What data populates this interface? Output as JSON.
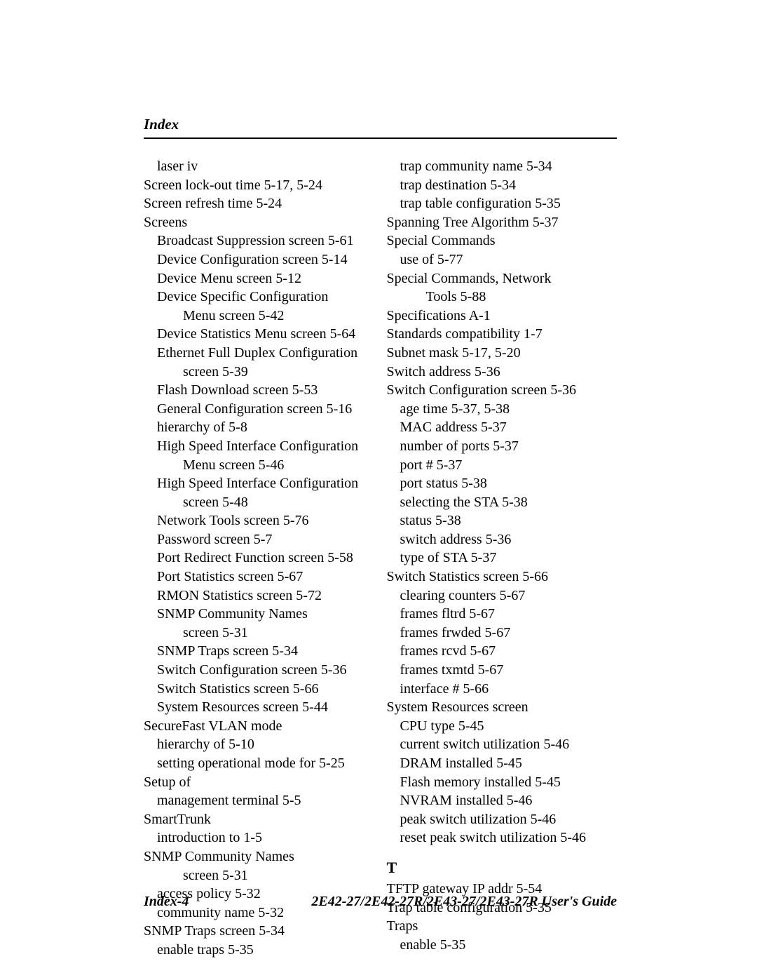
{
  "header": {
    "title": "Index"
  },
  "footer": {
    "left": "Index-4",
    "right": "2E42-27/2E42-27R/2E43-27/2E43-27R User's Guide"
  },
  "section_T": "T",
  "left_col": [
    {
      "text": "laser  iv",
      "indent": 1
    },
    {
      "text": "Screen lock-out time  5-17, 5-24",
      "indent": 0
    },
    {
      "text": "Screen refresh time  5-24",
      "indent": 0
    },
    {
      "text": "Screens",
      "indent": 0
    },
    {
      "text": "Broadcast Suppression screen  5-61",
      "indent": 1
    },
    {
      "text": "Device Configuration screen  5-14",
      "indent": 1
    },
    {
      "text": "Device Menu screen  5-12",
      "indent": 1
    },
    {
      "text": "Device Specific Configuration",
      "indent": 1
    },
    {
      "text": "Menu screen  5-42",
      "indent": 2
    },
    {
      "text": "Device Statistics Menu screen  5-64",
      "indent": 1
    },
    {
      "text": "Ethernet Full Duplex Configuration",
      "indent": 1
    },
    {
      "text": "screen  5-39",
      "indent": 2
    },
    {
      "text": "Flash Download screen  5-53",
      "indent": 1
    },
    {
      "text": "General Configuration screen  5-16",
      "indent": 1
    },
    {
      "text": "hierarchy of  5-8",
      "indent": 1
    },
    {
      "text": "High Speed Interface Configuration",
      "indent": 1
    },
    {
      "text": "Menu screen  5-46",
      "indent": 2
    },
    {
      "text": "High Speed Interface Configuration",
      "indent": 1
    },
    {
      "text": "screen  5-48",
      "indent": 2
    },
    {
      "text": "Network Tools screen  5-76",
      "indent": 1
    },
    {
      "text": "Password screen  5-7",
      "indent": 1
    },
    {
      "text": "Port Redirect Function screen  5-58",
      "indent": 1
    },
    {
      "text": "Port Statistics screen  5-67",
      "indent": 1
    },
    {
      "text": "RMON Statistics screen  5-72",
      "indent": 1
    },
    {
      "text": "SNMP Community Names",
      "indent": 1
    },
    {
      "text": "screen  5-31",
      "indent": 2
    },
    {
      "text": "SNMP Traps screen  5-34",
      "indent": 1
    },
    {
      "text": "Switch Configuration screen  5-36",
      "indent": 1
    },
    {
      "text": "Switch Statistics screen  5-66",
      "indent": 1
    },
    {
      "text": "System Resources screen  5-44",
      "indent": 1
    },
    {
      "text": "SecureFast VLAN mode",
      "indent": 0
    },
    {
      "text": "hierarchy of  5-10",
      "indent": 1
    },
    {
      "text": "setting operational mode for  5-25",
      "indent": 1
    },
    {
      "text": "Setup of",
      "indent": 0
    },
    {
      "text": "management terminal  5-5",
      "indent": 1
    },
    {
      "text": "SmartTrunk",
      "indent": 0
    },
    {
      "text": "introduction to  1-5",
      "indent": 1
    },
    {
      "text": "SNMP Community Names",
      "indent": 0
    },
    {
      "text": "screen  5-31",
      "indent": 2
    },
    {
      "text": "access policy  5-32",
      "indent": 1
    },
    {
      "text": "community name  5-32",
      "indent": 1
    },
    {
      "text": "SNMP Traps screen  5-34",
      "indent": 0
    },
    {
      "text": "enable traps  5-35",
      "indent": 1
    }
  ],
  "right_col_top": [
    {
      "text": "trap community name  5-34",
      "indent": 1
    },
    {
      "text": "trap destination  5-34",
      "indent": 1
    },
    {
      "text": "trap table configuration  5-35",
      "indent": 1
    },
    {
      "text": "Spanning Tree Algorithm  5-37",
      "indent": 0
    },
    {
      "text": "Special Commands",
      "indent": 0
    },
    {
      "text": "use of  5-77",
      "indent": 1
    },
    {
      "text": "Special Commands, Network",
      "indent": 0
    },
    {
      "text": "Tools  5-88",
      "indent": 2
    },
    {
      "text": "Specifications  A-1",
      "indent": 0
    },
    {
      "text": "Standards compatibility  1-7",
      "indent": 0
    },
    {
      "text": "Subnet mask  5-17, 5-20",
      "indent": 0
    },
    {
      "text": "Switch address  5-36",
      "indent": 0
    },
    {
      "text": "Switch Configuration screen  5-36",
      "indent": 0
    },
    {
      "text": "age time  5-37, 5-38",
      "indent": 1
    },
    {
      "text": "MAC address  5-37",
      "indent": 1
    },
    {
      "text": "number of ports  5-37",
      "indent": 1
    },
    {
      "text": "port #  5-37",
      "indent": 1
    },
    {
      "text": "port status  5-38",
      "indent": 1
    },
    {
      "text": "selecting the STA  5-38",
      "indent": 1
    },
    {
      "text": "status  5-38",
      "indent": 1
    },
    {
      "text": "switch address  5-36",
      "indent": 1
    },
    {
      "text": "type of STA  5-37",
      "indent": 1
    },
    {
      "text": "Switch Statistics screen  5-66",
      "indent": 0
    },
    {
      "text": "clearing counters  5-67",
      "indent": 1
    },
    {
      "text": "frames fltrd  5-67",
      "indent": 1
    },
    {
      "text": "frames frwded  5-67",
      "indent": 1
    },
    {
      "text": "frames rcvd  5-67",
      "indent": 1
    },
    {
      "text": "frames txmtd  5-67",
      "indent": 1
    },
    {
      "text": "interface #  5-66",
      "indent": 1
    },
    {
      "text": "System Resources screen",
      "indent": 0
    },
    {
      "text": "CPU type  5-45",
      "indent": 1
    },
    {
      "text": "current switch utilization  5-46",
      "indent": 1
    },
    {
      "text": "DRAM installed  5-45",
      "indent": 1
    },
    {
      "text": "Flash memory installed  5-45",
      "indent": 1
    },
    {
      "text": "NVRAM installed  5-46",
      "indent": 1
    },
    {
      "text": "peak switch utilization  5-46",
      "indent": 1
    },
    {
      "text": "reset peak switch utilization  5-46",
      "indent": 1
    }
  ],
  "right_col_T": [
    {
      "text": "TFTP gateway IP addr  5-54",
      "indent": 0
    },
    {
      "text": "Trap table configuration  5-35",
      "indent": 0
    },
    {
      "text": "Traps",
      "indent": 0
    },
    {
      "text": "enable  5-35",
      "indent": 1
    }
  ]
}
